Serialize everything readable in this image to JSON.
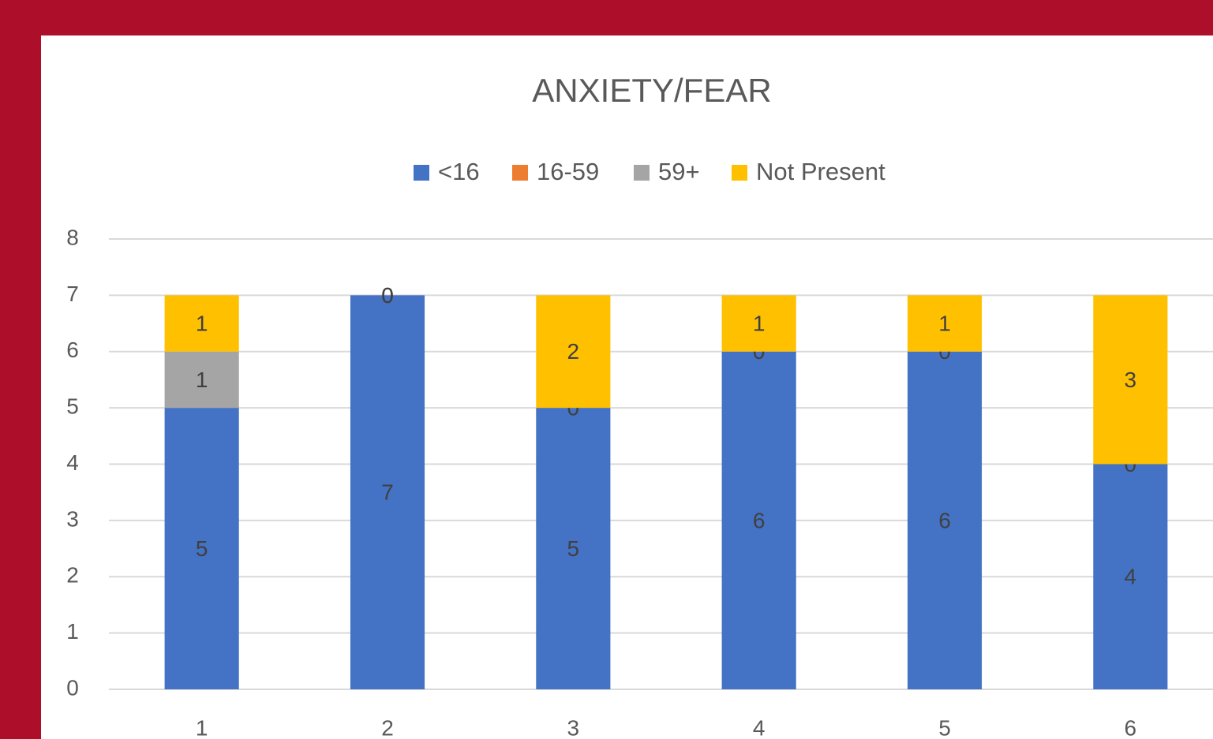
{
  "chart_data": {
    "type": "stacked_bar",
    "title": "ANXIETY/FEAR",
    "categories": [
      "1",
      "2",
      "3",
      "4",
      "5",
      "6"
    ],
    "series": [
      {
        "name": "<16",
        "color": "#4472c4",
        "values": [
          5,
          7,
          5,
          6,
          6,
          4
        ]
      },
      {
        "name": "16-59",
        "color": "#ed7d31",
        "values": [
          null,
          0,
          0,
          0,
          0,
          0
        ]
      },
      {
        "name": "59+",
        "color": "#a5a5a5",
        "values": [
          1,
          null,
          null,
          null,
          null,
          null
        ]
      },
      {
        "name": "Not Present",
        "color": "#ffc000",
        "values": [
          1,
          0,
          2,
          1,
          1,
          3
        ]
      }
    ],
    "ylim": [
      0,
      8
    ],
    "yticks": [
      0,
      1,
      2,
      3,
      4,
      5,
      6,
      7,
      8
    ],
    "grid": true,
    "legend": "top"
  }
}
